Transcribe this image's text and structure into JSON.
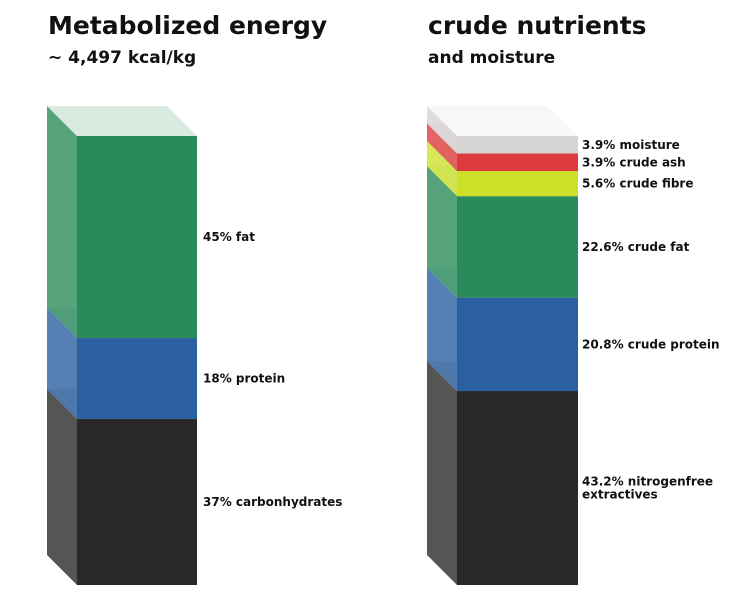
{
  "colors": {
    "fat": "#2a8b5a",
    "protein": "#2a5fa0",
    "carbs": "#292929",
    "moisture": "#d4d4d4",
    "ash": "#dd3a3f",
    "fibre": "#cde02a"
  },
  "chart_data": [
    {
      "type": "stacked-column-3d",
      "title": "Metabolized energy",
      "subtitle": "~ 4,497 kcal/kg",
      "segments": [
        {
          "label": "37% carbonhydrates",
          "value": 37,
          "color_key": "carbs"
        },
        {
          "label": "18% protein",
          "value": 18,
          "color_key": "protein"
        },
        {
          "label": "45% fat",
          "value": 45,
          "color_key": "fat"
        }
      ]
    },
    {
      "type": "stacked-column-3d",
      "title": "crude nutrients",
      "subtitle": "and moisture",
      "segments": [
        {
          "label": "43.2% nitrogenfree extractives",
          "label_lines": [
            "43.2% nitrogenfree",
            "extractives"
          ],
          "value": 43.2,
          "color_key": "carbs"
        },
        {
          "label": "20.8% crude protein",
          "value": 20.8,
          "color_key": "protein"
        },
        {
          "label": "22.6% crude fat",
          "value": 22.6,
          "color_key": "fat"
        },
        {
          "label": "5.6% crude fibre",
          "value": 5.6,
          "color_key": "fibre"
        },
        {
          "label": "3.9% crude ash",
          "value": 3.9,
          "color_key": "ash"
        },
        {
          "label": "3.9% moisture",
          "value": 3.9,
          "color_key": "moisture"
        }
      ]
    }
  ]
}
